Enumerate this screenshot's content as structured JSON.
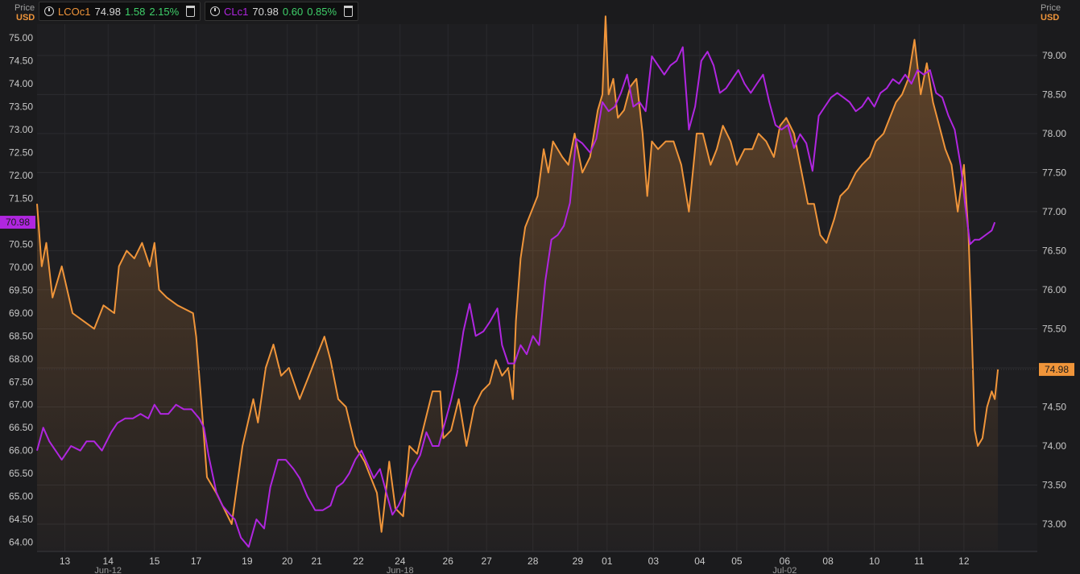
{
  "legend": [
    {
      "ric": "LCOc1",
      "last": "74.98",
      "change": "1.58",
      "pct": "2.15%",
      "color": "#f0953a"
    },
    {
      "ric": "CLc1",
      "last": "70.98",
      "change": "0.60",
      "pct": "0.85%",
      "color": "#b026e0"
    }
  ],
  "axis_units": {
    "left_top": "Price",
    "left_bottom": "USD",
    "right_top": "Price",
    "right_bottom": "USD"
  },
  "price_tags": {
    "left": "70.98",
    "right": "74.98"
  },
  "chart_data": {
    "type": "line",
    "x_tick_labels": [
      "13",
      "14",
      "15",
      "17",
      "19",
      "20",
      "21",
      "22",
      "24",
      "26",
      "27",
      "28",
      "29",
      "01",
      "03",
      "04",
      "05",
      "06",
      "08",
      "10",
      "11",
      "12"
    ],
    "x_month_labels": [
      "Jun-12",
      "Jun-18",
      "Jul-02"
    ],
    "left_axis": {
      "ticks": [
        "64.00",
        "64.50",
        "65.00",
        "65.50",
        "66.00",
        "66.50",
        "67.00",
        "67.50",
        "68.00",
        "68.50",
        "69.00",
        "69.50",
        "70.00",
        "70.50",
        "71.00",
        "71.50",
        "72.00",
        "72.50",
        "73.00",
        "73.50",
        "74.00",
        "74.50",
        "75.00"
      ],
      "ylim": [
        63.8,
        75.3
      ]
    },
    "right_axis": {
      "ticks": [
        "73.00",
        "73.50",
        "74.00",
        "74.50",
        "75.00",
        "75.50",
        "76.00",
        "76.50",
        "77.00",
        "77.50",
        "78.00",
        "78.50",
        "79.00"
      ],
      "ylim": [
        72.65,
        79.4
      ]
    },
    "series": [
      {
        "name": "LCOc1",
        "axis": "right",
        "color": "#f0953a",
        "fill": true,
        "points": [
          [
            0,
            77.1
          ],
          [
            0.3,
            76.3
          ],
          [
            0.6,
            76.6
          ],
          [
            1,
            75.9
          ],
          [
            1.6,
            76.3
          ],
          [
            2.3,
            75.7
          ],
          [
            3,
            75.6
          ],
          [
            3.7,
            75.5
          ],
          [
            4.3,
            75.8
          ],
          [
            5,
            75.7
          ],
          [
            5.3,
            76.3
          ],
          [
            5.8,
            76.5
          ],
          [
            6.3,
            76.4
          ],
          [
            6.8,
            76.6
          ],
          [
            7.3,
            76.3
          ],
          [
            7.6,
            76.6
          ],
          [
            7.9,
            76.0
          ],
          [
            8.4,
            75.9
          ],
          [
            9.1,
            75.8
          ],
          [
            10.1,
            75.7
          ],
          [
            10.3,
            75.4
          ],
          [
            10.7,
            74.4
          ],
          [
            11.0,
            73.6
          ],
          [
            11.6,
            73.4
          ],
          [
            12.1,
            73.2
          ],
          [
            12.6,
            73.0
          ],
          [
            13.3,
            74.0
          ],
          [
            14.0,
            74.6
          ],
          [
            14.3,
            74.3
          ],
          [
            14.8,
            75.0
          ],
          [
            15.3,
            75.3
          ],
          [
            15.8,
            74.9
          ],
          [
            16.3,
            75.0
          ],
          [
            17.0,
            74.6
          ],
          [
            17.4,
            74.8
          ],
          [
            18.2,
            75.2
          ],
          [
            18.6,
            75.4
          ],
          [
            19.0,
            75.1
          ],
          [
            19.5,
            74.6
          ],
          [
            20.0,
            74.5
          ],
          [
            20.6,
            74.0
          ],
          [
            21.2,
            73.8
          ],
          [
            22.0,
            73.4
          ],
          [
            22.3,
            72.9
          ],
          [
            22.8,
            73.8
          ],
          [
            23.2,
            73.2
          ],
          [
            23.7,
            73.1
          ],
          [
            24.1,
            74.0
          ],
          [
            24.6,
            73.9
          ],
          [
            25.1,
            74.3
          ],
          [
            25.6,
            74.7
          ],
          [
            26.1,
            74.7
          ],
          [
            26.3,
            74.1
          ],
          [
            26.8,
            74.2
          ],
          [
            27.3,
            74.6
          ],
          [
            27.8,
            74.0
          ],
          [
            28.3,
            74.5
          ],
          [
            28.8,
            74.7
          ],
          [
            29.3,
            74.8
          ],
          [
            29.7,
            75.1
          ],
          [
            30.1,
            74.9
          ],
          [
            30.5,
            75.0
          ],
          [
            30.8,
            74.6
          ],
          [
            31.0,
            75.6
          ],
          [
            31.3,
            76.4
          ],
          [
            31.6,
            76.8
          ],
          [
            32.0,
            77.0
          ],
          [
            32.4,
            77.2
          ],
          [
            32.8,
            77.8
          ],
          [
            33.1,
            77.5
          ],
          [
            33.4,
            77.9
          ],
          [
            34.0,
            77.7
          ],
          [
            34.4,
            77.6
          ],
          [
            34.8,
            78.0
          ],
          [
            35.3,
            77.5
          ],
          [
            35.8,
            77.7
          ],
          [
            36.3,
            78.3
          ],
          [
            36.6,
            78.5
          ],
          [
            36.8,
            79.5
          ],
          [
            37.0,
            78.5
          ],
          [
            37.3,
            78.7
          ],
          [
            37.6,
            78.2
          ],
          [
            38.0,
            78.3
          ],
          [
            38.4,
            78.6
          ],
          [
            38.8,
            78.7
          ],
          [
            39.2,
            78.0
          ],
          [
            39.5,
            77.2
          ],
          [
            39.8,
            77.9
          ],
          [
            40.2,
            77.8
          ],
          [
            40.7,
            77.9
          ],
          [
            41.2,
            77.9
          ],
          [
            41.7,
            77.6
          ],
          [
            42.2,
            77.0
          ],
          [
            42.7,
            78.0
          ],
          [
            43.1,
            78.0
          ],
          [
            43.6,
            77.6
          ],
          [
            44.0,
            77.8
          ],
          [
            44.4,
            78.1
          ],
          [
            44.9,
            77.9
          ],
          [
            45.3,
            77.6
          ],
          [
            45.8,
            77.8
          ],
          [
            46.3,
            77.8
          ],
          [
            46.7,
            78.0
          ],
          [
            47.2,
            77.9
          ],
          [
            47.7,
            77.7
          ],
          [
            48.1,
            78.1
          ],
          [
            48.5,
            78.2
          ],
          [
            49.0,
            78.0
          ],
          [
            49.4,
            77.6
          ],
          [
            49.9,
            77.1
          ],
          [
            50.3,
            77.1
          ],
          [
            50.7,
            76.7
          ],
          [
            51.1,
            76.6
          ],
          [
            51.6,
            76.9
          ],
          [
            52.0,
            77.2
          ],
          [
            52.5,
            77.3
          ],
          [
            53.0,
            77.5
          ],
          [
            53.4,
            77.6
          ],
          [
            53.9,
            77.7
          ],
          [
            54.3,
            77.9
          ],
          [
            54.8,
            78.0
          ],
          [
            55.2,
            78.2
          ],
          [
            55.6,
            78.4
          ],
          [
            56.0,
            78.5
          ],
          [
            56.4,
            78.7
          ],
          [
            56.8,
            79.2
          ],
          [
            57.2,
            78.5
          ],
          [
            57.6,
            78.9
          ],
          [
            58.0,
            78.4
          ],
          [
            58.4,
            78.1
          ],
          [
            58.8,
            77.8
          ],
          [
            59.2,
            77.6
          ],
          [
            59.6,
            77.0
          ],
          [
            60.0,
            77.6
          ],
          [
            60.3,
            76.7
          ],
          [
            60.5,
            75.5
          ],
          [
            60.7,
            74.2
          ],
          [
            60.9,
            74.0
          ],
          [
            61.2,
            74.1
          ],
          [
            61.5,
            74.5
          ],
          [
            61.8,
            74.7
          ],
          [
            62.0,
            74.6
          ],
          [
            62.2,
            74.98
          ]
        ]
      },
      {
        "name": "CLc1",
        "axis": "left",
        "color": "#b026e0",
        "fill": false,
        "points": [
          [
            0,
            66.0
          ],
          [
            0.4,
            66.5
          ],
          [
            0.8,
            66.2
          ],
          [
            1.2,
            66.0
          ],
          [
            1.6,
            65.8
          ],
          [
            2.2,
            66.1
          ],
          [
            2.8,
            66.0
          ],
          [
            3.2,
            66.2
          ],
          [
            3.7,
            66.2
          ],
          [
            4.2,
            66.0
          ],
          [
            4.8,
            66.4
          ],
          [
            5.2,
            66.6
          ],
          [
            5.7,
            66.7
          ],
          [
            6.2,
            66.7
          ],
          [
            6.7,
            66.8
          ],
          [
            7.2,
            66.7
          ],
          [
            7.6,
            67.0
          ],
          [
            8.0,
            66.8
          ],
          [
            8.5,
            66.8
          ],
          [
            9.0,
            67.0
          ],
          [
            9.5,
            66.9
          ],
          [
            10.0,
            66.9
          ],
          [
            10.5,
            66.7
          ],
          [
            10.8,
            66.5
          ],
          [
            11.1,
            65.9
          ],
          [
            11.6,
            65.1
          ],
          [
            12.0,
            64.8
          ],
          [
            12.5,
            64.6
          ],
          [
            12.8,
            64.5
          ],
          [
            13.2,
            64.1
          ],
          [
            13.7,
            63.9
          ],
          [
            14.2,
            64.5
          ],
          [
            14.7,
            64.3
          ],
          [
            15.1,
            65.2
          ],
          [
            15.6,
            65.8
          ],
          [
            16.1,
            65.8
          ],
          [
            16.6,
            65.6
          ],
          [
            17.0,
            65.4
          ],
          [
            17.5,
            65.0
          ],
          [
            18.0,
            64.7
          ],
          [
            18.5,
            64.7
          ],
          [
            19.0,
            64.8
          ],
          [
            19.4,
            65.2
          ],
          [
            19.8,
            65.3
          ],
          [
            20.2,
            65.5
          ],
          [
            20.6,
            65.8
          ],
          [
            21.0,
            66.0
          ],
          [
            21.4,
            65.7
          ],
          [
            21.8,
            65.4
          ],
          [
            22.2,
            65.6
          ],
          [
            22.6,
            65.1
          ],
          [
            23.0,
            64.6
          ],
          [
            23.4,
            64.8
          ],
          [
            23.8,
            65.1
          ],
          [
            24.3,
            65.6
          ],
          [
            24.8,
            65.9
          ],
          [
            25.2,
            66.4
          ],
          [
            25.6,
            66.1
          ],
          [
            26.0,
            66.1
          ],
          [
            26.4,
            66.6
          ],
          [
            26.8,
            67.1
          ],
          [
            27.2,
            67.7
          ],
          [
            27.6,
            68.6
          ],
          [
            28.0,
            69.2
          ],
          [
            28.4,
            68.5
          ],
          [
            28.9,
            68.6
          ],
          [
            29.3,
            68.8
          ],
          [
            29.8,
            69.1
          ],
          [
            30.1,
            68.3
          ],
          [
            30.5,
            67.9
          ],
          [
            30.9,
            67.9
          ],
          [
            31.3,
            68.3
          ],
          [
            31.7,
            68.1
          ],
          [
            32.1,
            68.5
          ],
          [
            32.5,
            68.3
          ],
          [
            32.9,
            69.7
          ],
          [
            33.3,
            70.6
          ],
          [
            33.7,
            70.7
          ],
          [
            34.1,
            70.9
          ],
          [
            34.5,
            71.4
          ],
          [
            34.9,
            72.8
          ],
          [
            35.3,
            72.7
          ],
          [
            35.8,
            72.5
          ],
          [
            36.2,
            72.8
          ],
          [
            36.6,
            73.6
          ],
          [
            37.0,
            73.4
          ],
          [
            37.4,
            73.5
          ],
          [
            37.8,
            73.8
          ],
          [
            38.2,
            74.2
          ],
          [
            38.6,
            73.5
          ],
          [
            39.0,
            73.6
          ],
          [
            39.4,
            73.4
          ],
          [
            39.8,
            74.6
          ],
          [
            40.2,
            74.4
          ],
          [
            40.6,
            74.2
          ],
          [
            41.0,
            74.4
          ],
          [
            41.4,
            74.5
          ],
          [
            41.8,
            74.8
          ],
          [
            42.2,
            73.0
          ],
          [
            42.6,
            73.5
          ],
          [
            43.0,
            74.5
          ],
          [
            43.4,
            74.7
          ],
          [
            43.8,
            74.4
          ],
          [
            44.2,
            73.8
          ],
          [
            44.6,
            73.9
          ],
          [
            45.0,
            74.1
          ],
          [
            45.4,
            74.3
          ],
          [
            45.8,
            74.0
          ],
          [
            46.2,
            73.8
          ],
          [
            46.6,
            74.0
          ],
          [
            47.0,
            74.2
          ],
          [
            47.4,
            73.6
          ],
          [
            47.8,
            73.1
          ],
          [
            48.2,
            73.0
          ],
          [
            48.6,
            73.1
          ],
          [
            49.0,
            72.6
          ],
          [
            49.4,
            72.9
          ],
          [
            49.8,
            72.7
          ],
          [
            50.2,
            72.1
          ],
          [
            50.6,
            73.3
          ],
          [
            51.0,
            73.5
          ],
          [
            51.4,
            73.7
          ],
          [
            51.8,
            73.8
          ],
          [
            52.2,
            73.7
          ],
          [
            52.6,
            73.6
          ],
          [
            53.0,
            73.4
          ],
          [
            53.4,
            73.5
          ],
          [
            53.8,
            73.7
          ],
          [
            54.2,
            73.5
          ],
          [
            54.6,
            73.8
          ],
          [
            55.0,
            73.9
          ],
          [
            55.4,
            74.1
          ],
          [
            55.8,
            74.0
          ],
          [
            56.2,
            74.2
          ],
          [
            56.6,
            74.0
          ],
          [
            57.0,
            74.3
          ],
          [
            57.4,
            74.2
          ],
          [
            57.8,
            74.3
          ],
          [
            58.2,
            73.8
          ],
          [
            58.6,
            73.7
          ],
          [
            59.0,
            73.3
          ],
          [
            59.4,
            73.0
          ],
          [
            59.8,
            72.2
          ],
          [
            60.1,
            71.3
          ],
          [
            60.4,
            70.5
          ],
          [
            60.7,
            70.6
          ],
          [
            61.0,
            70.6
          ],
          [
            61.4,
            70.7
          ],
          [
            61.8,
            70.8
          ],
          [
            62.0,
            70.98
          ]
        ]
      }
    ]
  }
}
